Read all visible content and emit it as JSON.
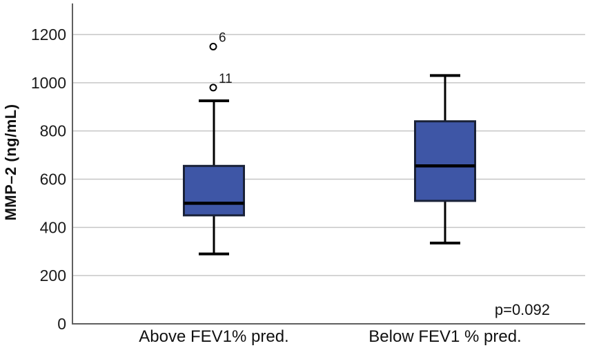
{
  "chart_data": {
    "type": "boxplot",
    "title": "",
    "xlabel": "",
    "ylabel": "MMP–2 (ng/mL)",
    "categories": [
      "Above FEV1% pred.",
      "Below FEV1 % pred."
    ],
    "yticks": [
      0,
      200,
      400,
      600,
      800,
      1000,
      1200
    ],
    "ylim": [
      0,
      1330
    ],
    "grid": "horizontal",
    "legend": "none",
    "annotation": "p=0.092",
    "series": [
      {
        "name": "Above FEV1% pred.",
        "min": 290,
        "q1": 450,
        "median": 500,
        "q3": 655,
        "max": 925,
        "outliers": [
          {
            "value": 980,
            "label": "11"
          },
          {
            "value": 1150,
            "label": "6"
          }
        ]
      },
      {
        "name": "Below FEV1 % pred.",
        "min": 335,
        "q1": 510,
        "median": 655,
        "q3": 840,
        "max": 1030,
        "outliers": []
      }
    ],
    "colors": {
      "box_fill": "#3E56A6",
      "box_border": "#1A2238",
      "median": "#000000",
      "whisker": "#000000",
      "outlier_stroke": "#000000",
      "outlier_fill": "#ffffff",
      "gridline": "#c6c6c6",
      "axis": "#5f5f5f",
      "text": "#1a1a1a"
    }
  }
}
